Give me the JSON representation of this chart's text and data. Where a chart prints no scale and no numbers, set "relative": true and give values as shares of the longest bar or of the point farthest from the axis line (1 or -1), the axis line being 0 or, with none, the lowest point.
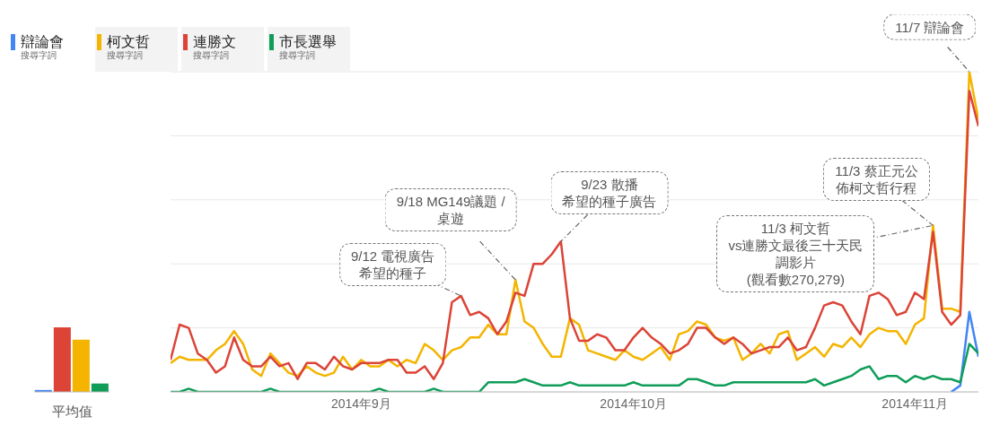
{
  "chart_data": [
    {
      "type": "bar",
      "relative": true,
      "categories": [
        null,
        null,
        null,
        null
      ],
      "xlabel": "平均值",
      "values": [
        0.03,
        1,
        0.81,
        0.13
      ],
      "colors": [
        "#4285f4",
        "#db4437",
        "#f4b400",
        "#0f9d58"
      ]
    },
    {
      "type": "line",
      "relative": true,
      "grid": "y",
      "legend": "top left",
      "marker": "none",
      "line_style": "solid",
      "x": [
        "2014-08-11",
        "2014-08-12",
        "2014-08-13",
        "2014-08-14",
        "2014-08-15",
        "2014-08-16",
        "2014-08-17",
        "2014-08-18",
        "2014-08-19",
        "2014-08-20",
        "2014-08-21",
        "2014-08-22",
        "2014-08-23",
        "2014-08-24",
        "2014-08-25",
        "2014-08-26",
        "2014-08-27",
        "2014-08-28",
        "2014-08-29",
        "2014-08-30",
        "2014-08-31",
        "2014-09-01",
        "2014-09-02",
        "2014-09-03",
        "2014-09-04",
        "2014-09-05",
        "2014-09-06",
        "2014-09-07",
        "2014-09-08",
        "2014-09-09",
        "2014-09-10",
        "2014-09-11",
        "2014-09-12",
        "2014-09-13",
        "2014-09-14",
        "2014-09-15",
        "2014-09-16",
        "2014-09-17",
        "2014-09-18",
        "2014-09-19",
        "2014-09-20",
        "2014-09-21",
        "2014-09-22",
        "2014-09-23",
        "2014-09-24",
        "2014-09-25",
        "2014-09-26",
        "2014-09-27",
        "2014-09-28",
        "2014-09-29",
        "2014-09-30",
        "2014-10-01",
        "2014-10-02",
        "2014-10-03",
        "2014-10-04",
        "2014-10-05",
        "2014-10-06",
        "2014-10-07",
        "2014-10-08",
        "2014-10-09",
        "2014-10-10",
        "2014-10-11",
        "2014-10-12",
        "2014-10-13",
        "2014-10-14",
        "2014-10-15",
        "2014-10-16",
        "2014-10-17",
        "2014-10-18",
        "2014-10-19",
        "2014-10-20",
        "2014-10-21",
        "2014-10-22",
        "2014-10-23",
        "2014-10-24",
        "2014-10-25",
        "2014-10-26",
        "2014-10-27",
        "2014-10-28",
        "2014-10-29",
        "2014-10-30",
        "2014-10-31",
        "2014-11-01",
        "2014-11-02",
        "2014-11-03",
        "2014-11-04",
        "2014-11-05",
        "2014-11-06",
        "2014-11-07",
        "2014-11-08"
      ],
      "xlim": [
        "2014-08-11",
        "2014-11-08"
      ],
      "xticks": [
        {
          "value": "2014-09-01",
          "label": "2014年9月"
        },
        {
          "value": "2014-10-01",
          "label": "2014年10月"
        },
        {
          "value": "2014-11-01",
          "label": "2014年11月"
        }
      ],
      "series": [
        {
          "name": "辯論會",
          "color": "#4285f4",
          "values": [
            null,
            null,
            null,
            null,
            null,
            null,
            null,
            null,
            null,
            null,
            null,
            null,
            null,
            null,
            null,
            null,
            null,
            null,
            null,
            null,
            null,
            null,
            null,
            null,
            null,
            null,
            null,
            null,
            null,
            null,
            null,
            null,
            null,
            null,
            null,
            null,
            null,
            null,
            null,
            null,
            null,
            null,
            null,
            null,
            null,
            null,
            null,
            null,
            null,
            null,
            null,
            null,
            null,
            null,
            null,
            null,
            null,
            null,
            null,
            null,
            null,
            null,
            null,
            null,
            null,
            null,
            null,
            null,
            null,
            null,
            null,
            null,
            null,
            null,
            null,
            null,
            null,
            null,
            null,
            null,
            null,
            null,
            null,
            null,
            null,
            null,
            0,
            0.02,
            0.25,
            0.11
          ]
        },
        {
          "name": "柯文哲",
          "color": "#f4b400",
          "values": [
            0.09,
            0.11,
            0.1,
            0.1,
            0.1,
            0.13,
            0.15,
            0.19,
            0.15,
            0.07,
            0.05,
            0.12,
            0.09,
            0.06,
            0.05,
            0.08,
            0.06,
            0.05,
            0.06,
            0.11,
            0.07,
            0.1,
            0.08,
            0.08,
            0.1,
            0.08,
            0.1,
            0.09,
            0.15,
            0.13,
            0.1,
            0.13,
            0.14,
            0.17,
            0.17,
            0.21,
            0.18,
            0.18,
            0.35,
            0.22,
            0.2,
            0.15,
            0.11,
            0.11,
            0.23,
            0.21,
            0.13,
            0.12,
            0.11,
            0.1,
            0.13,
            0.11,
            0.1,
            0.12,
            0.14,
            0.1,
            0.18,
            0.19,
            0.22,
            0.21,
            0.17,
            0.16,
            0.17,
            0.1,
            0.12,
            0.15,
            0.12,
            0.18,
            0.19,
            0.1,
            0.12,
            0.14,
            0.11,
            0.15,
            0.14,
            0.17,
            0.14,
            0.18,
            0.2,
            0.19,
            0.19,
            0.15,
            0.21,
            0.23,
            0.52,
            0.26,
            0.26,
            0.25,
            1,
            0.85
          ]
        },
        {
          "name": "連勝文",
          "color": "#db4437",
          "values": [
            0.1,
            0.21,
            0.2,
            0.12,
            0.1,
            0.06,
            0.08,
            0.17,
            0.1,
            0.08,
            0.08,
            0.11,
            0.08,
            0.09,
            0.04,
            0.09,
            0.09,
            0.07,
            0.11,
            0.08,
            0.07,
            0.09,
            0.09,
            0.09,
            0.1,
            0.1,
            0.06,
            0.06,
            0.08,
            0.04,
            0.09,
            0.28,
            0.3,
            0.24,
            0.25,
            0.23,
            0.18,
            0.22,
            0.31,
            0.3,
            0.4,
            0.4,
            0.43,
            0.47,
            0.23,
            0.16,
            0.16,
            0.18,
            0.17,
            0.13,
            0.13,
            0.17,
            0.2,
            0.17,
            0.15,
            0.12,
            0.13,
            0.15,
            0.2,
            0.2,
            0.17,
            0.15,
            0.17,
            0.15,
            0.12,
            0.13,
            0.14,
            0.14,
            0.17,
            0.13,
            0.14,
            0.2,
            0.27,
            0.28,
            0.27,
            0.22,
            0.18,
            0.3,
            0.31,
            0.29,
            0.24,
            0.25,
            0.31,
            0.29,
            0.5,
            0.25,
            0.21,
            0.24,
            0.94,
            0.83
          ]
        },
        {
          "name": "市長選舉",
          "color": "#0f9d58",
          "values": [
            0,
            0,
            0.01,
            0,
            0,
            0,
            0,
            0,
            0,
            0,
            0,
            0.01,
            0,
            0,
            0,
            0,
            0,
            0,
            0,
            0,
            0,
            0,
            0,
            0.01,
            0,
            0,
            0,
            0,
            0,
            0.01,
            0,
            0,
            0,
            0,
            0,
            0.03,
            0.03,
            0.03,
            0.03,
            0.04,
            0.03,
            0.02,
            0.02,
            0.02,
            0.03,
            0.02,
            0.02,
            0.02,
            0.02,
            0.02,
            0.02,
            0.03,
            0.02,
            0.02,
            0.02,
            0.02,
            0.02,
            0.04,
            0.04,
            0.03,
            0.02,
            0.02,
            0.03,
            0.03,
            0.03,
            0.03,
            0.03,
            0.03,
            0.03,
            0.03,
            0.03,
            0.04,
            0.02,
            0.03,
            0.04,
            0.05,
            0.07,
            0.08,
            0.04,
            0.05,
            0.05,
            0.03,
            0.05,
            0.04,
            0.05,
            0.04,
            0.04,
            0.03,
            0.15,
            0.12
          ]
        }
      ],
      "annotations": [
        "搜尋字詞",
        "搜尋字詞",
        "搜尋字詞",
        "搜尋字詞",
        {
          "text": "9/12 電視廣告希望的種子",
          "x": "2014-09-12",
          "y": 0.3
        },
        {
          "text": "9/18 MG149議題 / 桌遊",
          "x": "2014-09-18",
          "y": 0.35
        },
        {
          "text": "9/23 散播希望的種子廣告",
          "x": "2014-09-23",
          "y": 0.47
        },
        {
          "text": "11/3 蔡正元公佈柯文哲行程",
          "x": "2014-11-03",
          "y": 0.52
        },
        {
          "text": "11/3 柯文哲 vs連勝文最後三十天民調影片(觀看數270,279)",
          "x": "2014-11-03",
          "y": 0.52
        },
        {
          "text": "11/7 辯論會",
          "x": "2014-11-07",
          "y": 1
        }
      ]
    }
  ]
}
